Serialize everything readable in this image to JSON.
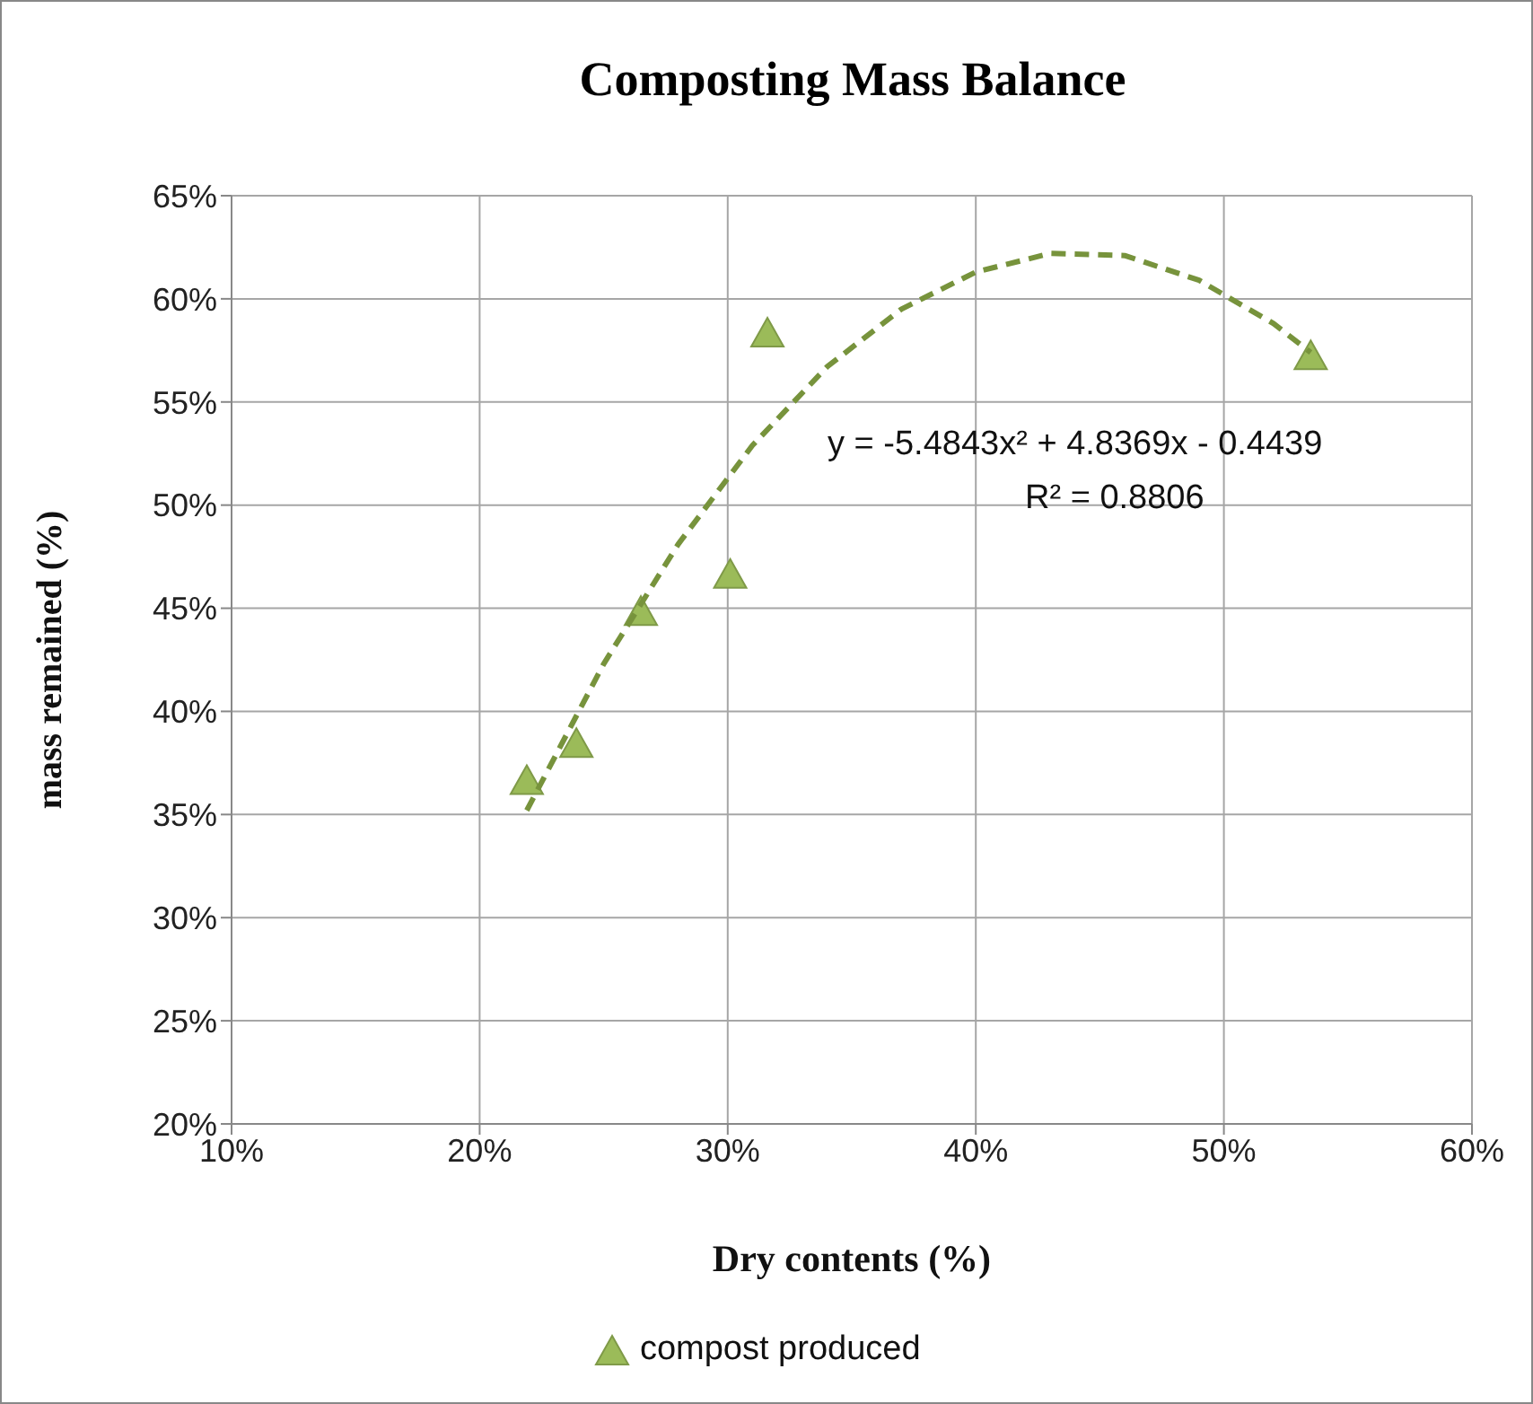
{
  "chart_data": {
    "type": "scatter",
    "title": "Composting Mass Balance",
    "xlabel": "Dry contents (%)",
    "ylabel": "mass remained (%)",
    "xlim": [
      0.1,
      0.6
    ],
    "xticks": [
      {
        "value": 0.1,
        "label": "10%"
      },
      {
        "value": 0.2,
        "label": "20%"
      },
      {
        "value": 0.3,
        "label": "30%"
      },
      {
        "value": 0.4,
        "label": "40%"
      },
      {
        "value": 0.5,
        "label": "50%"
      },
      {
        "value": 0.6,
        "label": "60%"
      }
    ],
    "ylim": [
      0.2,
      0.65
    ],
    "yticks": [
      {
        "value": 0.2,
        "label": "20%"
      },
      {
        "value": 0.25,
        "label": "25%"
      },
      {
        "value": 0.3,
        "label": "30%"
      },
      {
        "value": 0.35,
        "label": "35%"
      },
      {
        "value": 0.4,
        "label": "40%"
      },
      {
        "value": 0.45,
        "label": "45%"
      },
      {
        "value": 0.5,
        "label": "50%"
      },
      {
        "value": 0.55,
        "label": "55%"
      },
      {
        "value": 0.6,
        "label": "60%"
      },
      {
        "value": 0.65,
        "label": "65%"
      }
    ],
    "grid": true,
    "legend": "bottom",
    "series": [
      {
        "name": "compost produced",
        "marker": "triangle",
        "color": "#9bbb59",
        "x": [
          0.219,
          0.239,
          0.265,
          0.301,
          0.316,
          0.535
        ],
        "values": [
          0.366,
          0.384,
          0.448,
          0.466,
          0.583,
          0.572
        ]
      },
      {
        "type": "line",
        "line_style": "dashed",
        "marker": "none",
        "color": "#77933c",
        "x": [
          0.219,
          0.25,
          0.28,
          0.31,
          0.34,
          0.37,
          0.4,
          0.43,
          0.46,
          0.49,
          0.52,
          0.535
        ],
        "values": [
          0.352,
          0.423,
          0.481,
          0.529,
          0.567,
          0.595,
          0.613,
          0.622,
          0.621,
          0.609,
          0.588,
          0.574
        ]
      }
    ],
    "annotations": [
      "y = -5.4843x² + 4.8369x - 0.4439",
      "R² = 0.8806"
    ]
  }
}
